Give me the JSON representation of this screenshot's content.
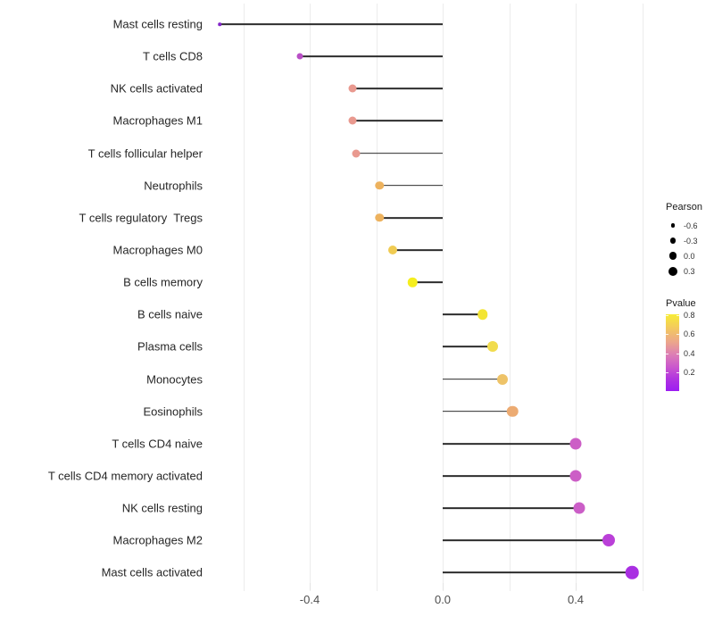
{
  "chart_data": {
    "type": "lollipop",
    "title": "",
    "xlabel": "",
    "ylabel": "",
    "legend_position": "right",
    "grid": "vertical-only",
    "x_axis": {
      "range": [
        -0.72,
        0.66
      ],
      "ticks": [
        {
          "label": "-0.4",
          "value": -0.4
        },
        {
          "label": "0.0",
          "value": 0.0
        },
        {
          "label": "0.4",
          "value": 0.4
        }
      ]
    },
    "gridline_values": [
      -0.6,
      -0.4,
      -0.2,
      0.0,
      0.2,
      0.4,
      0.6
    ],
    "points": [
      {
        "label": "Mast cells resting",
        "pearson": -0.67,
        "pvalue": 0.1,
        "color": "#8224C8",
        "size": 3.5
      },
      {
        "label": "T cells CD8",
        "pearson": -0.43,
        "pvalue": 0.3,
        "color": "#B94FC6",
        "size": 7
      },
      {
        "label": "NK cells activated",
        "pearson": -0.27,
        "pvalue": 0.5,
        "color": "#E9998F",
        "size": 9
      },
      {
        "label": "Macrophages M1",
        "pearson": -0.27,
        "pvalue": 0.5,
        "color": "#E9998F",
        "size": 9
      },
      {
        "label": "T cells follicular helper",
        "pearson": -0.26,
        "pvalue": 0.5,
        "color": "#E9998F",
        "size": 9
      },
      {
        "label": "Neutrophils",
        "pearson": -0.19,
        "pvalue": 0.6,
        "color": "#EDB25E",
        "size": 9.5
      },
      {
        "label": "T cells regulatory  Tregs",
        "pearson": -0.19,
        "pvalue": 0.6,
        "color": "#EDB25E",
        "size": 9.5
      },
      {
        "label": "Macrophages M0",
        "pearson": -0.15,
        "pvalue": 0.65,
        "color": "#F0CB52",
        "size": 10
      },
      {
        "label": "B cells memory",
        "pearson": -0.09,
        "pvalue": 0.8,
        "color": "#F5EE1E",
        "size": 10.5
      },
      {
        "label": "B cells naive",
        "pearson": 0.12,
        "pvalue": 0.75,
        "color": "#F3E534",
        "size": 11.5
      },
      {
        "label": "Plasma cells",
        "pearson": 0.15,
        "pvalue": 0.7,
        "color": "#F1DC4E",
        "size": 12
      },
      {
        "label": "Monocytes",
        "pearson": 0.18,
        "pvalue": 0.62,
        "color": "#EEC368",
        "size": 12
      },
      {
        "label": "Eosinophils",
        "pearson": 0.21,
        "pvalue": 0.55,
        "color": "#ECAB72",
        "size": 12.5
      },
      {
        "label": "T cells CD4 naive",
        "pearson": 0.4,
        "pvalue": 0.3,
        "color": "#CC5EC6",
        "size": 13
      },
      {
        "label": "T cells CD4 memory activated",
        "pearson": 0.4,
        "pvalue": 0.3,
        "color": "#CC5EC6",
        "size": 13
      },
      {
        "label": "NK cells resting",
        "pearson": 0.41,
        "pvalue": 0.3,
        "color": "#CB5EC7",
        "size": 13
      },
      {
        "label": "Macrophages M2",
        "pearson": 0.5,
        "pvalue": 0.2,
        "color": "#BA40D8",
        "size": 14
      },
      {
        "label": "Mast cells activated",
        "pearson": 0.57,
        "pvalue": 0.12,
        "color": "#A92FE2",
        "size": 14.5
      }
    ],
    "size_legend": {
      "title": "Pearson",
      "entries": [
        {
          "label": "-0.6",
          "size": 4.5
        },
        {
          "label": "-0.3",
          "size": 6.5
        },
        {
          "label": "0.0",
          "size": 8.5
        },
        {
          "label": "0.3",
          "size": 10
        }
      ]
    },
    "color_legend": {
      "title": "Pvalue",
      "tick_labels": [
        {
          "label": "0.8",
          "offset": 1
        },
        {
          "label": "0.6",
          "offset": 22
        },
        {
          "label": "0.4",
          "offset": 43.5
        },
        {
          "label": "0.2",
          "offset": 65
        }
      ],
      "gradient": [
        {
          "pos": 0,
          "color": "#F7EC36"
        },
        {
          "pos": 18,
          "color": "#F3C95F"
        },
        {
          "pos": 36,
          "color": "#ECA68B"
        },
        {
          "pos": 52,
          "color": "#DD7FB4"
        },
        {
          "pos": 68,
          "color": "#CB59CC"
        },
        {
          "pos": 84,
          "color": "#B134E0"
        },
        {
          "pos": 100,
          "color": "#9C1CF2"
        }
      ]
    }
  },
  "colors": {
    "stem": "#2b2b2b",
    "gridline": "#ececec",
    "axis_text": "#4d4d4d",
    "category_text": "#262626",
    "legend_dot": "#000000"
  }
}
